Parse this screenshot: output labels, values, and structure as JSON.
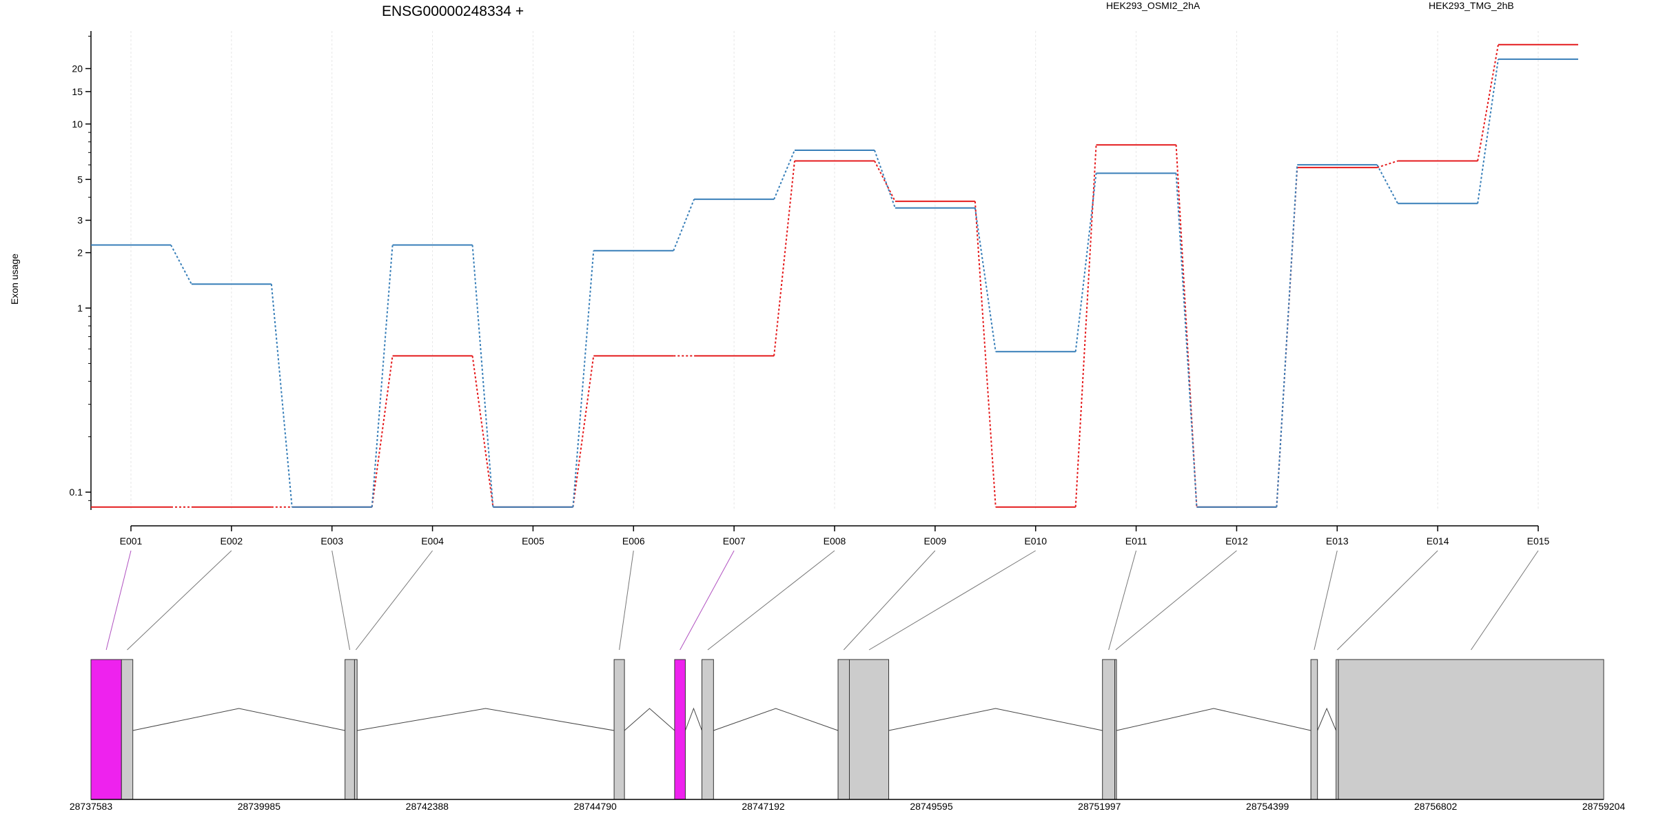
{
  "chart_data": {
    "type": "line",
    "title": "ENSG00000248334 +",
    "xlabel": "",
    "ylabel": "Exon usage",
    "y_scale": "log",
    "ylim": [
      0.08,
      32
    ],
    "y_ticks": [
      {
        "v": 0.1,
        "label": "0.1"
      },
      {
        "v": 1,
        "label": "1"
      },
      {
        "v": 2,
        "label": "2"
      },
      {
        "v": 3,
        "label": "3"
      },
      {
        "v": 5,
        "label": "5"
      },
      {
        "v": 10,
        "label": "10"
      },
      {
        "v": 15,
        "label": "15"
      },
      {
        "v": 20,
        "label": "20"
      }
    ],
    "categories": [
      "E001",
      "E002",
      "E003",
      "E004",
      "E005",
      "E006",
      "E007",
      "E008",
      "E009",
      "E010",
      "E011",
      "E012",
      "E013",
      "E014",
      "E015"
    ],
    "series": [
      {
        "name": "HEK293_OSMI2_2hA",
        "color": "#e41a1c",
        "values": [
          0.083,
          0.083,
          0.083,
          0.55,
          0.083,
          0.55,
          0.55,
          6.3,
          3.8,
          0.083,
          7.7,
          0.083,
          5.8,
          6.3,
          27.0
        ]
      },
      {
        "name": "HEK293_TMG_2hB",
        "color": "#377eb8",
        "values": [
          2.2,
          1.35,
          0.083,
          2.2,
          0.083,
          2.05,
          3.9,
          7.2,
          3.5,
          0.58,
          5.4,
          0.083,
          6.0,
          3.7,
          22.5
        ]
      }
    ],
    "grid": true,
    "legend_position": "top",
    "gene_model": {
      "coordinates": [
        "28737583",
        "28739985",
        "28742388",
        "28744790",
        "28747192",
        "28749595",
        "28751997",
        "28754399",
        "28756802",
        "28759204"
      ],
      "highlight_color": "#ee22ee",
      "exon_color": "#cccccc",
      "highlighted_exons": [
        "E001",
        "E007"
      ]
    }
  }
}
